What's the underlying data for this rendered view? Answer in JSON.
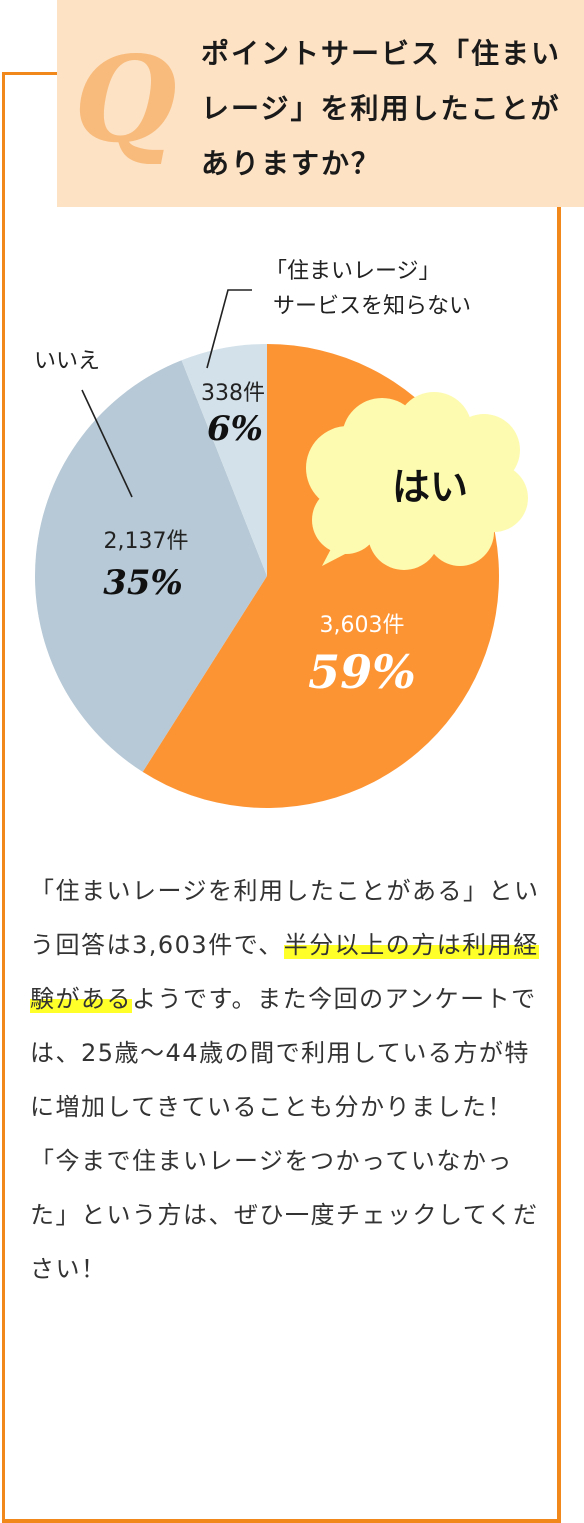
{
  "question": {
    "mark": "Q",
    "text": "ポイントサービス「住まいレージ」を利用したことがありますか？"
  },
  "chart_data": {
    "type": "pie",
    "slices": [
      {
        "label": "はい",
        "count": "3,603件",
        "percent": "59%",
        "value": 59,
        "color": "#fd9434"
      },
      {
        "label": "いいえ",
        "count": "2,137件",
        "percent": "35%",
        "value": 35,
        "color": "#b7c9d6"
      },
      {
        "label": "「住まいレージ」サービスを知らない",
        "label_lines": [
          "「住まいレージ」",
          "サービスを知らない"
        ],
        "count": "338件",
        "percent": "6%",
        "value": 6,
        "color": "#d3e1ea"
      }
    ]
  },
  "body": {
    "part1": "「住まいレージを利用したことがある」という回答は3,603件で、",
    "highlight": "半分以上の方は利用経験がある",
    "part2": "ようです。また今回のアンケートでは、25歳～44歳の間で利用している方が特に増加してきていることも分かりました！「今まで住まいレージをつかっていなかった」という方は、ぜひ一度チェックしてください！"
  },
  "colors": {
    "accent": "#f0881c",
    "question_bg": "#fde2c4",
    "bubble": "#fdfbb0",
    "highlight": "#ffff2a"
  }
}
